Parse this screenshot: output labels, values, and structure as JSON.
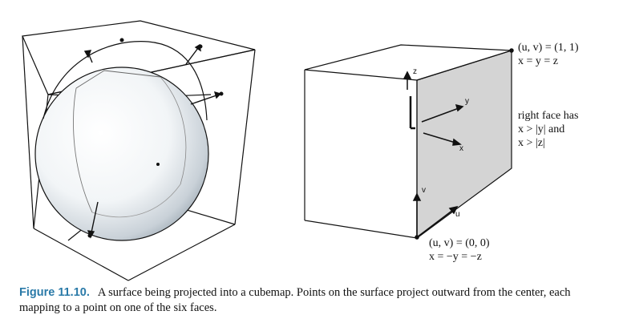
{
  "labels": {
    "uv_top_line1": "(u, v) = (1, 1)",
    "uv_top_line2": "x = y = z",
    "right_face_line1": "right face has",
    "right_face_line2": "x > |y| and",
    "right_face_line3": "x > |z|",
    "uv_bottom_line1": "(u, v) = (0, 0)",
    "uv_bottom_line2": "x = −y = −z"
  },
  "axes": {
    "z": "z",
    "y": "y",
    "x": "x",
    "v": "v",
    "u": "u"
  },
  "caption": {
    "figure_label": "Figure 11.10.",
    "text": "A surface being projected into a cubemap. Points on the surface project outward from the center, each mapping to a point on one of the six faces."
  },
  "colors": {
    "caption_label": "#2a7aa8",
    "shaded_face": "#d4d4d4",
    "line": "#111111"
  }
}
